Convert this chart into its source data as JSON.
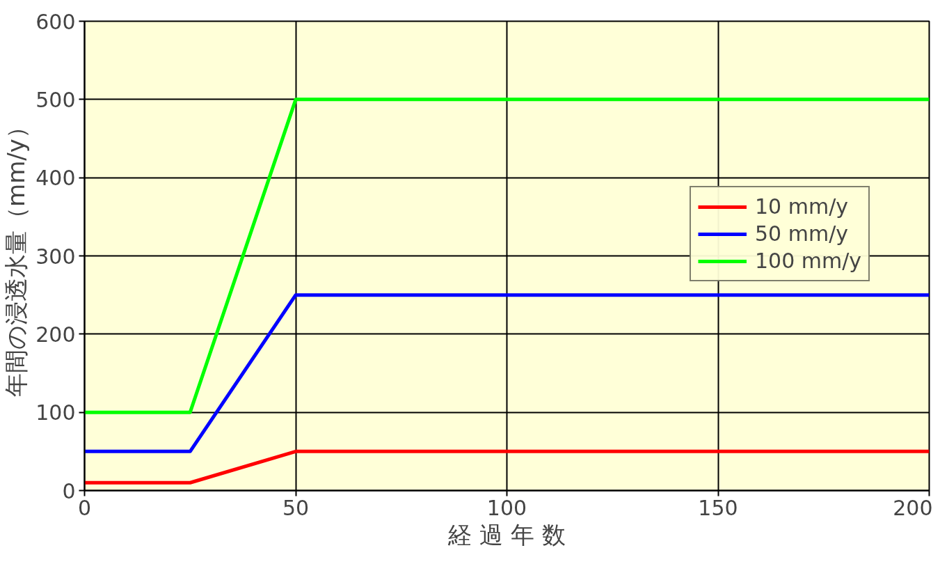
{
  "chart_data": {
    "type": "line",
    "xlabel": "経 過 年 数",
    "ylabel": "年間の浸透水量（mm/y）",
    "x": [
      0,
      25,
      50,
      200
    ],
    "series": [
      {
        "name": "10 mm/y",
        "color": "#ff0000",
        "values": [
          10,
          10,
          50,
          50
        ]
      },
      {
        "name": "50 mm/y",
        "color": "#0000ff",
        "values": [
          50,
          50,
          250,
          250
        ]
      },
      {
        "name": "100 mm/y",
        "color": "#00ff00",
        "values": [
          100,
          100,
          500,
          500
        ]
      }
    ],
    "xlim": [
      0,
      200
    ],
    "ylim": [
      0,
      600
    ],
    "xticks": [
      0,
      50,
      100,
      150,
      200
    ],
    "yticks": [
      0,
      100,
      200,
      300,
      400,
      500,
      600
    ],
    "grid": true,
    "legend": "right",
    "marker": "none",
    "line_style": "solid"
  }
}
